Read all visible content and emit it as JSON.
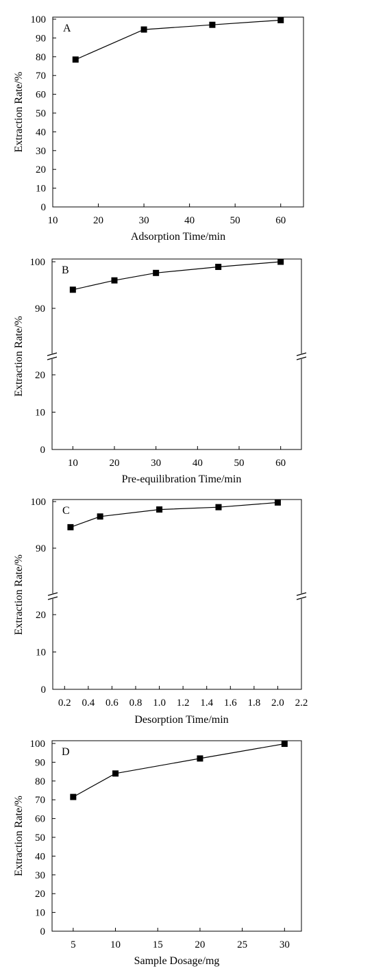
{
  "chart_data": [
    {
      "panel": "A",
      "type": "line",
      "xlabel": "Adsorption Time/min",
      "ylabel": "Extraction Rate/%",
      "xlim": [
        10,
        65
      ],
      "ylim": [
        0,
        100
      ],
      "xticks": [
        "10",
        "20",
        "30",
        "40",
        "50",
        "60"
      ],
      "yticks": [
        "0",
        "10",
        "20",
        "30",
        "40",
        "50",
        "60",
        "70",
        "80",
        "90",
        "100"
      ],
      "axis_break": false,
      "series": [
        {
          "x": [
            15,
            30,
            45,
            60
          ],
          "y": [
            78.5,
            94.5,
            97,
            99.5
          ]
        }
      ]
    },
    {
      "panel": "B",
      "type": "line",
      "xlabel": "Pre-equilibration Time/min",
      "ylabel": "Extraction Rate/%",
      "xlim": [
        5,
        65
      ],
      "ylim": [
        0,
        100
      ],
      "xticks": [
        "10",
        "20",
        "30",
        "40",
        "50",
        "60"
      ],
      "yticks": [
        "0",
        "10",
        "20",
        "90",
        "100"
      ],
      "axis_break": true,
      "series": [
        {
          "x": [
            10,
            20,
            30,
            45,
            60
          ],
          "y": [
            94,
            96,
            97.6,
            98.9,
            100
          ]
        }
      ]
    },
    {
      "panel": "C",
      "type": "line",
      "xlabel": "Desorption Time/min",
      "ylabel": "Extraction Rate/%",
      "xlim": [
        0.1,
        2.2
      ],
      "ylim": [
        0,
        100
      ],
      "xticks": [
        "0.2",
        "0.4",
        "0.6",
        "0.8",
        "1.0",
        "1.2",
        "1.4",
        "1.6",
        "1.8",
        "2.0",
        "2.2"
      ],
      "yticks": [
        "0",
        "10",
        "20",
        "90",
        "100"
      ],
      "axis_break": true,
      "series": [
        {
          "x": [
            0.25,
            0.5,
            1.0,
            1.5,
            2.0
          ],
          "y": [
            94.5,
            96.8,
            98.3,
            98.8,
            99.8
          ]
        }
      ]
    },
    {
      "panel": "D",
      "type": "line",
      "xlabel": "Sample Dosage/mg",
      "ylabel": "Extraction Rate/%",
      "xlim": [
        2.5,
        32
      ],
      "ylim": [
        0,
        100
      ],
      "xticks": [
        "5",
        "10",
        "15",
        "20",
        "25",
        "30"
      ],
      "yticks": [
        "0",
        "10",
        "20",
        "30",
        "40",
        "50",
        "60",
        "70",
        "80",
        "90",
        "100"
      ],
      "axis_break": false,
      "series": [
        {
          "x": [
            5,
            10,
            20,
            30
          ],
          "y": [
            71.5,
            84,
            92,
            99.8
          ]
        }
      ]
    }
  ]
}
